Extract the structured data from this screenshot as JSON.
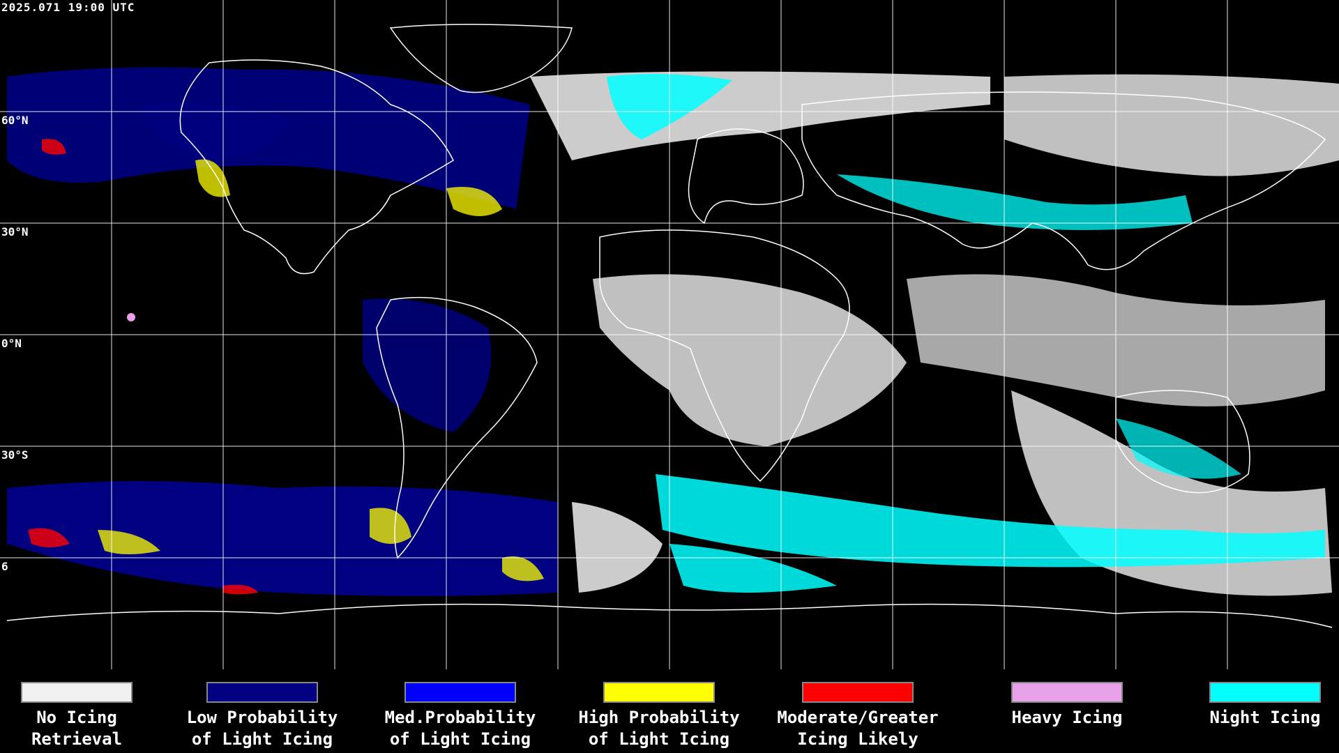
{
  "header": {
    "timestamp": "2025.071 19:00 UTC"
  },
  "lat_labels": [
    "60°N",
    "30°N",
    "0°N",
    "30°S",
    "6"
  ],
  "legend": [
    {
      "label_line1": "No Icing",
      "label_line2": "Retrieval",
      "color": "#f0f0f0"
    },
    {
      "label_line1": "Low Probability",
      "label_line2": "of Light Icing",
      "color": "#000080"
    },
    {
      "label_line1": "Med.Probability",
      "label_line2": "of Light Icing",
      "color": "#0000ff"
    },
    {
      "label_line1": "High Probability",
      "label_line2": "of Light Icing",
      "color": "#ffff00"
    },
    {
      "label_line1": "Moderate/Greater",
      "label_line2": "Icing Likely",
      "color": "#ff0000"
    },
    {
      "label_line1": "Heavy Icing",
      "label_line2": "",
      "color": "#e8a0e8"
    },
    {
      "label_line1": "Night Icing",
      "label_line2": "",
      "color": "#00ffff"
    }
  ],
  "colors": {
    "background": "#000000",
    "grid": "#ffffff",
    "coast": "#ffffff"
  }
}
